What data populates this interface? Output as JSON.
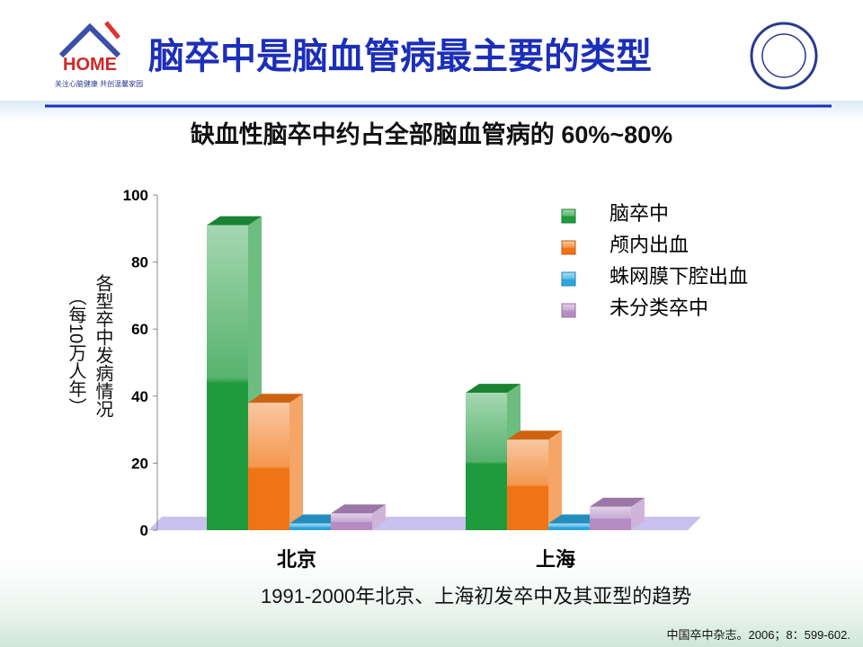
{
  "header": {
    "logo_text": "HOME",
    "logo_slogan": "关注心脑健康 共创温馨家园",
    "title": "脑卒中是脑血管病最主要的类型"
  },
  "subtitle": "缺血性脑卒中约占全部脑血管病的 60%~80%",
  "chart_data": {
    "type": "bar3d",
    "y_label": [
      "各型卒中发病情况",
      "（每10万人年）"
    ],
    "categories": [
      "北京",
      "上海"
    ],
    "series": [
      {
        "name": "脑卒中",
        "color": "#1f9a3c",
        "values": [
          91,
          41
        ]
      },
      {
        "name": "颅内出血",
        "color": "#f07414",
        "values": [
          38,
          27
        ]
      },
      {
        "name": "蛛网膜下腔出血",
        "color": "#2aa6e0",
        "values": [
          2,
          2
        ]
      },
      {
        "name": "未分类卒中",
        "color": "#b58cc4",
        "values": [
          5,
          7
        ]
      }
    ],
    "ylim": [
      0,
      100
    ],
    "yticks": [
      0,
      20,
      40,
      60,
      80,
      100
    ]
  },
  "caption": "1991-2000年北京、上海初发卒中及其亚型的趋势",
  "citation": "中国卒中杂志。2006；8：599-602."
}
